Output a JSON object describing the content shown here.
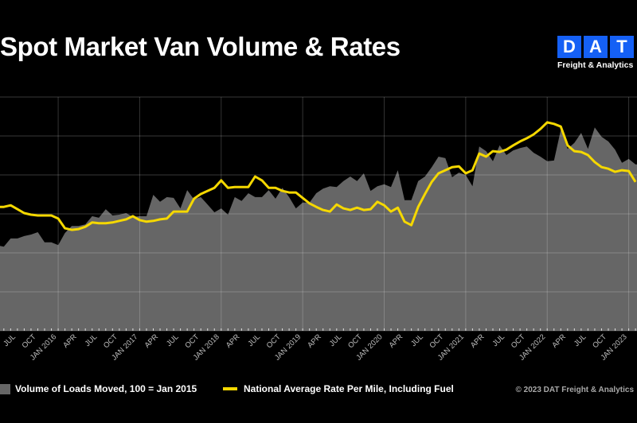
{
  "title": "Spot Market Van Volume & Rates",
  "logo": {
    "letters": [
      "D",
      "A",
      "T"
    ],
    "subtitle": "Freight & Analytics",
    "color": "#1560f5"
  },
  "legend": {
    "volume_label": "Volume of Loads Moved, 100 = Jan 2015",
    "rate_label": "National Average Rate Per Mile, Including Fuel"
  },
  "copyright": "© 2023 DAT Freight & Analytics",
  "chart_data": {
    "type": "area",
    "title": "Spot Market Van Volume & Rates",
    "xlabel": "",
    "ylabel": "",
    "ylim": [
      0,
      6
    ],
    "grid": true,
    "legend_position": "bottom",
    "colors": {
      "volume": "#666666",
      "rate": "#f5d800",
      "background": "#000000"
    },
    "x": [
      "2015-04",
      "2015-05",
      "2015-06",
      "2015-07",
      "2015-08",
      "2015-09",
      "2015-10",
      "2015-11",
      "2015-12",
      "2016-01",
      "2016-02",
      "2016-03",
      "2016-04",
      "2016-05",
      "2016-06",
      "2016-07",
      "2016-08",
      "2016-09",
      "2016-10",
      "2016-11",
      "2016-12",
      "2017-01",
      "2017-02",
      "2017-03",
      "2017-04",
      "2017-05",
      "2017-06",
      "2017-07",
      "2017-08",
      "2017-09",
      "2017-10",
      "2017-11",
      "2017-12",
      "2018-01",
      "2018-02",
      "2018-03",
      "2018-04",
      "2018-05",
      "2018-06",
      "2018-07",
      "2018-08",
      "2018-09",
      "2018-10",
      "2018-11",
      "2018-12",
      "2019-01",
      "2019-02",
      "2019-03",
      "2019-04",
      "2019-05",
      "2019-06",
      "2019-07",
      "2019-08",
      "2019-09",
      "2019-10",
      "2019-11",
      "2019-12",
      "2020-01",
      "2020-02",
      "2020-03",
      "2020-04",
      "2020-05",
      "2020-06",
      "2020-07",
      "2020-08",
      "2020-09",
      "2020-10",
      "2020-11",
      "2020-12",
      "2021-01",
      "2021-02",
      "2021-03",
      "2021-04",
      "2021-05",
      "2021-06",
      "2021-07",
      "2021-08",
      "2021-09",
      "2021-10",
      "2021-11",
      "2021-12",
      "2022-01",
      "2022-02",
      "2022-03",
      "2022-04",
      "2022-05",
      "2022-06",
      "2022-07",
      "2022-08",
      "2022-09",
      "2022-10",
      "2022-11",
      "2022-12",
      "2023-01",
      "2023-02"
    ],
    "series": [
      {
        "name": "Volume of Loads Moved, 100 = Jan 2015",
        "type": "area",
        "values": [
          2.18,
          2.16,
          2.37,
          2.37,
          2.43,
          2.47,
          2.53,
          2.27,
          2.27,
          2.2,
          2.51,
          2.69,
          2.69,
          2.73,
          2.94,
          2.9,
          3.12,
          2.96,
          2.98,
          3.02,
          2.92,
          2.94,
          2.94,
          3.49,
          3.31,
          3.43,
          3.41,
          3.14,
          3.61,
          3.37,
          3.43,
          3.24,
          3.04,
          3.14,
          2.98,
          3.43,
          3.33,
          3.53,
          3.43,
          3.43,
          3.61,
          3.39,
          3.67,
          3.43,
          3.14,
          3.29,
          3.29,
          3.53,
          3.65,
          3.71,
          3.69,
          3.84,
          3.96,
          3.84,
          4.04,
          3.59,
          3.71,
          3.76,
          3.69,
          4.12,
          3.35,
          3.35,
          3.84,
          3.96,
          4.2,
          4.47,
          4.43,
          3.94,
          4.06,
          4.0,
          3.71,
          4.73,
          4.61,
          4.35,
          4.76,
          4.51,
          4.63,
          4.69,
          4.73,
          4.57,
          4.47,
          4.35,
          4.37,
          5.16,
          4.67,
          4.82,
          5.08,
          4.67,
          5.22,
          4.98,
          4.86,
          4.65,
          4.31,
          4.41,
          4.27
        ]
      },
      {
        "name": "National Average Rate Per Mile, Including Fuel",
        "type": "line",
        "values": [
          3.18,
          3.18,
          3.22,
          3.12,
          3.02,
          2.98,
          2.96,
          2.96,
          2.96,
          2.88,
          2.63,
          2.59,
          2.61,
          2.67,
          2.78,
          2.76,
          2.76,
          2.78,
          2.82,
          2.86,
          2.94,
          2.84,
          2.8,
          2.82,
          2.86,
          2.88,
          3.06,
          3.06,
          3.06,
          3.39,
          3.51,
          3.59,
          3.67,
          3.86,
          3.67,
          3.69,
          3.69,
          3.69,
          3.96,
          3.86,
          3.67,
          3.67,
          3.59,
          3.55,
          3.55,
          3.41,
          3.27,
          3.18,
          3.1,
          3.06,
          3.24,
          3.14,
          3.1,
          3.16,
          3.1,
          3.12,
          3.31,
          3.22,
          3.06,
          3.16,
          2.8,
          2.71,
          3.18,
          3.51,
          3.82,
          4.04,
          4.12,
          4.2,
          4.22,
          4.04,
          4.12,
          4.55,
          4.47,
          4.61,
          4.59,
          4.65,
          4.76,
          4.86,
          4.94,
          5.04,
          5.18,
          5.35,
          5.31,
          5.24,
          4.76,
          4.61,
          4.59,
          4.51,
          4.33,
          4.2,
          4.16,
          4.08,
          4.12,
          4.1,
          3.82
        ]
      }
    ],
    "tick_labels": [
      {
        "at": "2015-07",
        "label": "JUL"
      },
      {
        "at": "2015-10",
        "label": "OCT"
      },
      {
        "at": "2016-01",
        "label": "JAN 2016"
      },
      {
        "at": "2016-04",
        "label": "APR"
      },
      {
        "at": "2016-07",
        "label": "JUL"
      },
      {
        "at": "2016-10",
        "label": "OCT"
      },
      {
        "at": "2017-01",
        "label": "JAN 2017"
      },
      {
        "at": "2017-04",
        "label": "APR"
      },
      {
        "at": "2017-07",
        "label": "JUL"
      },
      {
        "at": "2017-10",
        "label": "OCT"
      },
      {
        "at": "2018-01",
        "label": "JAN 2018"
      },
      {
        "at": "2018-04",
        "label": "APR"
      },
      {
        "at": "2018-07",
        "label": "JUL"
      },
      {
        "at": "2018-10",
        "label": "OCT"
      },
      {
        "at": "2019-01",
        "label": "JAN 2019"
      },
      {
        "at": "2019-04",
        "label": "APR"
      },
      {
        "at": "2019-07",
        "label": "JUL"
      },
      {
        "at": "2019-10",
        "label": "OCT"
      },
      {
        "at": "2020-01",
        "label": "JAN 2020"
      },
      {
        "at": "2020-04",
        "label": "APR"
      },
      {
        "at": "2020-07",
        "label": "JUL"
      },
      {
        "at": "2020-10",
        "label": "OCT"
      },
      {
        "at": "2021-01",
        "label": "JAN 2021"
      },
      {
        "at": "2021-04",
        "label": "APR"
      },
      {
        "at": "2021-07",
        "label": "JUL"
      },
      {
        "at": "2021-10",
        "label": "OCT"
      },
      {
        "at": "2022-01",
        "label": "JAN 2022"
      },
      {
        "at": "2022-04",
        "label": "APR"
      },
      {
        "at": "2022-07",
        "label": "JUL"
      },
      {
        "at": "2022-10",
        "label": "OCT"
      },
      {
        "at": "2023-01",
        "label": "JAN 2023"
      }
    ]
  }
}
